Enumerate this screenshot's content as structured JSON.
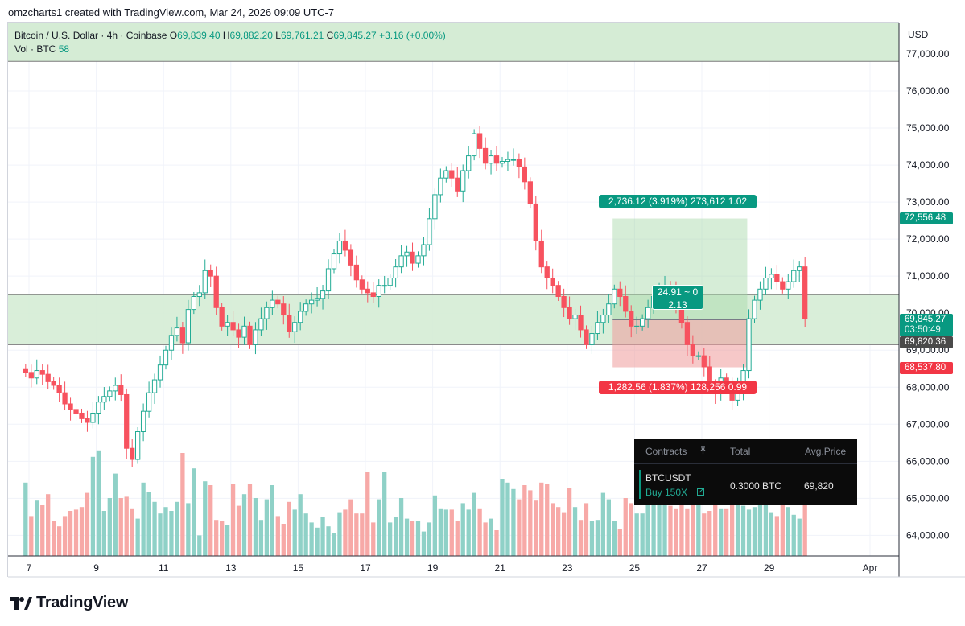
{
  "caption": "omzcharts1 created with TradingView.com, Mar 24, 2026 09:09 UTC-7",
  "legend": {
    "symbol": "Bitcoin / U.S. Dollar · 4h · Coinbase",
    "o_label": "O",
    "o": "69,839.40",
    "h_label": "H",
    "h": "69,882.20",
    "l_label": "L",
    "l": "69,761.21",
    "c_label": "C",
    "c": "69,845.27",
    "change": "+3.16 (+0.00%)",
    "vol_label": "Vol · BTC",
    "vol": "58"
  },
  "currency": "USD",
  "price_tags": {
    "target": "72,556.48",
    "current": "69,845.27",
    "countdown": "03:50:49",
    "entry": "69,820.36",
    "stop": "68,537.80"
  },
  "position": {
    "profit_label": "2,736.12 (3.919%) 273,612 1.02",
    "risk_reward_line1": "24.91 ~ 0",
    "risk_reward_line2": "2.13",
    "loss_label": "1,282.56 (1.837%) 128,256 0.99"
  },
  "panel": {
    "headers": [
      "Contracts",
      "Total",
      "Avg.Price"
    ],
    "pin_icon": "pin-icon",
    "symbol": "BTCUSDT",
    "side": "Buy 150X",
    "edit_icon": "edit-icon",
    "total": "0.3000 BTC",
    "avg_price": "69,820"
  },
  "footer": {
    "brand": "TradingView"
  },
  "colors": {
    "up": "#089981",
    "down": "#f23645",
    "up_candle": "#22ab94",
    "down_candle": "#f7525f",
    "vol_up": "#8fd1c7",
    "vol_down": "#f7a9a7",
    "zone": "#c8e6c9"
  },
  "chart_data": {
    "type": "candlestick",
    "title": "Bitcoin / U.S. Dollar · 4h · Coinbase",
    "y_range": [
      63500,
      77500
    ],
    "y_ticks": [
      "77,000.00",
      "76,000.00",
      "75,000.00",
      "74,000.00",
      "73,000.00",
      "72,000.00",
      "71,000.00",
      "70,000.00",
      "69,000.00",
      "68,000.00",
      "67,000.00",
      "66,000.00",
      "65,000.00",
      "64,000.00"
    ],
    "y_tick_values": [
      77000,
      76000,
      75000,
      74000,
      73000,
      72000,
      71000,
      70000,
      69000,
      68000,
      67000,
      66000,
      65000,
      64000
    ],
    "x_ticks": [
      "7",
      "9",
      "11",
      "13",
      "15",
      "17",
      "19",
      "21",
      "23",
      "25",
      "27",
      "29",
      "Apr"
    ],
    "x_tick_days": [
      7,
      9,
      11,
      13,
      15,
      17,
      19,
      21,
      23,
      25,
      27,
      29,
      32
    ],
    "day_start": 6.9,
    "bars_per_day": 6,
    "support_resistance_zone": [
      69150,
      70500
    ],
    "top_zone": [
      76800,
      77500
    ],
    "position_entry": 69820.36,
    "position_target": 72556.48,
    "position_stop": 68537.8,
    "position_days": [
      24.35,
      28.35
    ],
    "closes": [
      68400,
      68250,
      68450,
      68350,
      68150,
      68050,
      67850,
      67550,
      67400,
      67300,
      67150,
      67050,
      67300,
      67600,
      67750,
      67900,
      68050,
      67800,
      66350,
      66050,
      66800,
      67350,
      67850,
      68200,
      68600,
      69000,
      69400,
      69600,
      69200,
      70100,
      70450,
      70550,
      71150,
      71000,
      70150,
      69650,
      69750,
      69550,
      69350,
      69650,
      69150,
      69550,
      69850,
      70150,
      70350,
      70250,
      69950,
      69500,
      69750,
      70050,
      70250,
      70350,
      70400,
      70600,
      71200,
      71600,
      71950,
      71700,
      71300,
      70900,
      70650,
      70550,
      70450,
      70750,
      70750,
      70950,
      71250,
      71550,
      71650,
      71350,
      71550,
      71850,
      72550,
      73200,
      73650,
      73850,
      73650,
      73300,
      73850,
      74250,
      74850,
      74450,
      74050,
      74250,
      74050,
      74100,
      74150,
      74150,
      73950,
      73550,
      72950,
      71950,
      71250,
      70950,
      70750,
      70450,
      70150,
      69850,
      69950,
      69550,
      69150,
      69450,
      69750,
      69950,
      70250,
      70650,
      70450,
      70050,
      69650,
      69650,
      69850,
      70150,
      70450,
      70650,
      70750,
      70650,
      70250,
      69750,
      69150,
      68850,
      68850,
      68550,
      68050,
      67850,
      68250,
      68050,
      67650,
      67950,
      68450,
      69850,
      70350,
      70650,
      70950,
      71050,
      70850,
      70650,
      70850,
      71150,
      71250,
      69845
    ],
    "volumes": [
      57,
      31,
      43,
      40,
      48,
      27,
      23,
      31,
      35,
      36,
      38,
      49,
      77,
      82,
      35,
      45,
      64,
      45,
      46,
      37,
      29,
      57,
      50,
      42,
      33,
      38,
      35,
      42,
      80,
      41,
      68,
      16,
      58,
      55,
      28,
      27,
      24,
      56,
      39,
      48,
      56,
      45,
      28,
      44,
      55,
      31,
      25,
      42,
      36,
      48,
      33,
      26,
      22,
      30,
      23,
      18,
      34,
      36,
      44,
      33,
      33,
      65,
      26,
      44,
      65,
      26,
      30,
      45,
      29,
      27,
      27,
      19,
      26,
      47,
      37,
      36,
      36,
      27,
      41,
      36,
      49,
      37,
      26,
      29,
      20,
      60,
      57,
      52,
      44,
      55,
      51,
      43,
      57,
      56,
      41,
      38,
      34,
      53,
      38,
      28,
      41,
      27,
      28,
      49,
      44,
      27,
      21,
      45,
      41,
      33,
      33,
      49,
      48,
      55,
      62,
      39,
      37,
      44,
      37,
      40,
      40,
      33,
      35,
      45,
      37,
      37,
      42,
      41,
      39,
      36,
      38,
      43,
      49,
      34,
      31,
      48,
      38,
      32,
      29,
      58
    ],
    "vol_scale_max": 100
  }
}
